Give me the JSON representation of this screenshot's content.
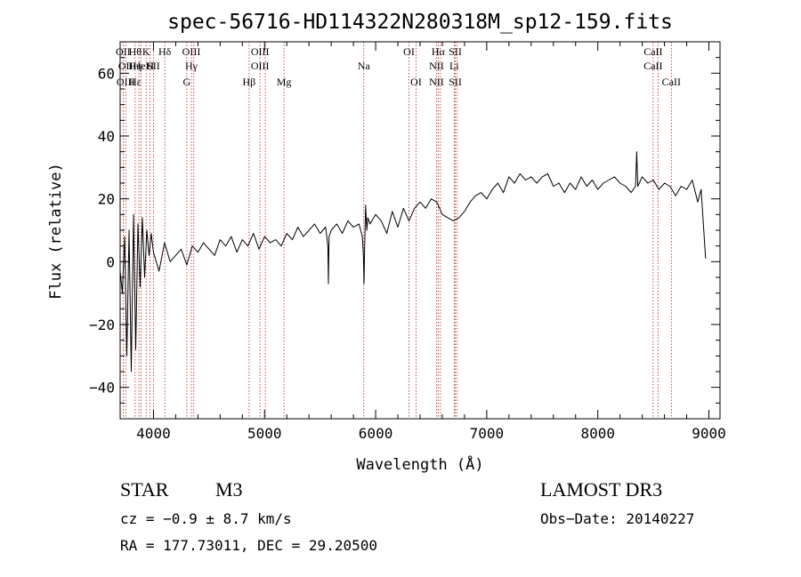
{
  "chart_data": {
    "type": "line",
    "title": "spec-56716-HD114322N280318M_sp12-159.fits",
    "xlabel": "Wavelength (Å)",
    "ylabel": "Flux (relative)",
    "xlim": [
      3700,
      9100
    ],
    "ylim": [
      -50,
      70
    ],
    "xticks": [
      4000,
      5000,
      6000,
      7000,
      8000,
      9000
    ],
    "yticks": [
      -40,
      -20,
      0,
      20,
      40,
      60
    ],
    "series": [
      {
        "name": "flux",
        "x": [
          3700,
          3720,
          3740,
          3760,
          3780,
          3800,
          3820,
          3840,
          3860,
          3880,
          3900,
          3920,
          3940,
          3960,
          3980,
          4000,
          4050,
          4100,
          4150,
          4200,
          4250,
          4300,
          4350,
          4400,
          4450,
          4500,
          4550,
          4600,
          4650,
          4700,
          4750,
          4800,
          4850,
          4900,
          4950,
          5000,
          5050,
          5100,
          5150,
          5200,
          5250,
          5300,
          5350,
          5400,
          5450,
          5500,
          5550,
          5570,
          5575,
          5580,
          5600,
          5650,
          5700,
          5750,
          5800,
          5850,
          5880,
          5890,
          5895,
          5900,
          5910,
          5920,
          5930,
          5950,
          6000,
          6050,
          6100,
          6150,
          6200,
          6250,
          6300,
          6350,
          6400,
          6450,
          6500,
          6550,
          6600,
          6650,
          6700,
          6750,
          6800,
          6850,
          6900,
          6950,
          7000,
          7050,
          7100,
          7150,
          7200,
          7250,
          7300,
          7350,
          7400,
          7450,
          7500,
          7550,
          7600,
          7650,
          7700,
          7750,
          7800,
          7850,
          7900,
          7950,
          8000,
          8050,
          8100,
          8150,
          8200,
          8250,
          8300,
          8340,
          8350,
          8360,
          8400,
          8450,
          8500,
          8550,
          8600,
          8650,
          8700,
          8750,
          8800,
          8850,
          8900,
          8930,
          8950,
          8970
        ],
        "values": [
          -3,
          -10,
          8,
          -30,
          10,
          -35,
          15,
          -28,
          12,
          -8,
          14,
          -5,
          10,
          2,
          9,
          3,
          -3,
          6,
          0,
          2,
          4,
          -1,
          5,
          3,
          6,
          4,
          2,
          7,
          5,
          8,
          3,
          7,
          5,
          9,
          4,
          8,
          6,
          7,
          5,
          9,
          7,
          11,
          8,
          10,
          12,
          9,
          11,
          5,
          -7,
          8,
          10,
          12,
          9,
          13,
          11,
          12,
          8,
          2,
          -7,
          3,
          18,
          10,
          14,
          12,
          15,
          13,
          9,
          16,
          11,
          17,
          13,
          17,
          19,
          17,
          20,
          19,
          15,
          14,
          13,
          14,
          16,
          19,
          21,
          22,
          20,
          23,
          25,
          22,
          27,
          25,
          28,
          26,
          27,
          25,
          27,
          28,
          24,
          25,
          22,
          25,
          23,
          27,
          24,
          26,
          23,
          25,
          26,
          27,
          25,
          24,
          22,
          24,
          35,
          24,
          27,
          25,
          26,
          23,
          25,
          24,
          21,
          24,
          23,
          26,
          19,
          23,
          12,
          1
        ]
      }
    ],
    "lines": [
      {
        "w": 3727,
        "top": "OII",
        "mid": "",
        "bot": ""
      },
      {
        "w": 3750,
        "top": "",
        "mid": "OII",
        "bot": "OIII"
      },
      {
        "w": 3835,
        "top": "Hθ",
        "mid": "Hη",
        "bot": "Hε"
      },
      {
        "w": 3869,
        "top": "",
        "mid": "",
        "bot": ""
      },
      {
        "w": 3889,
        "top": "",
        "mid": "HeI",
        "bot": ""
      },
      {
        "w": 3934,
        "top": "K",
        "mid": "",
        "bot": ""
      },
      {
        "w": 3970,
        "top": "",
        "mid": "H",
        "bot": ""
      },
      {
        "w": 4000,
        "top": "",
        "mid": "SII",
        "bot": ""
      },
      {
        "w": 4102,
        "top": "Hδ",
        "mid": "",
        "bot": ""
      },
      {
        "w": 4300,
        "top": "",
        "mid": "",
        "bot": "G"
      },
      {
        "w": 4341,
        "top": "OIII",
        "mid": "Hγ",
        "bot": ""
      },
      {
        "w": 4363,
        "top": "",
        "mid": "",
        "bot": ""
      },
      {
        "w": 4861,
        "top": "",
        "mid": "",
        "bot": "Hβ"
      },
      {
        "w": 4959,
        "top": "OIII",
        "mid": "OIII",
        "bot": ""
      },
      {
        "w": 5007,
        "top": "",
        "mid": "",
        "bot": ""
      },
      {
        "w": 5175,
        "top": "",
        "mid": "",
        "bot": "Mg"
      },
      {
        "w": 5893,
        "top": "",
        "mid": "Na",
        "bot": ""
      },
      {
        "w": 6300,
        "top": "OI",
        "mid": "",
        "bot": ""
      },
      {
        "w": 6364,
        "top": "",
        "mid": "",
        "bot": "OI"
      },
      {
        "w": 6548,
        "top": "",
        "mid": "NII",
        "bot": "NII"
      },
      {
        "w": 6563,
        "top": "Hα",
        "mid": "",
        "bot": ""
      },
      {
        "w": 6583,
        "top": "",
        "mid": "",
        "bot": ""
      },
      {
        "w": 6707,
        "top": "",
        "mid": "Li",
        "bot": ""
      },
      {
        "w": 6717,
        "top": "SII",
        "mid": "",
        "bot": "SII"
      },
      {
        "w": 6731,
        "top": "",
        "mid": "",
        "bot": ""
      },
      {
        "w": 8498,
        "top": "CaII",
        "mid": "CaII",
        "bot": ""
      },
      {
        "w": 8542,
        "top": "",
        "mid": "",
        "bot": ""
      },
      {
        "w": 8662,
        "top": "",
        "mid": "",
        "bot": "CaII"
      }
    ]
  },
  "info": {
    "class": "STAR",
    "subclass": "M3",
    "survey": "LAMOST DR3",
    "velocity": "cz = −0.9 ± 8.7 km/s",
    "obs_date": "Obs−Date: 20140227",
    "coords": "RA = 177.73011, DEC =  29.20500"
  },
  "colors": {
    "line_marker": "#b22222",
    "spectrum": "#000000"
  }
}
